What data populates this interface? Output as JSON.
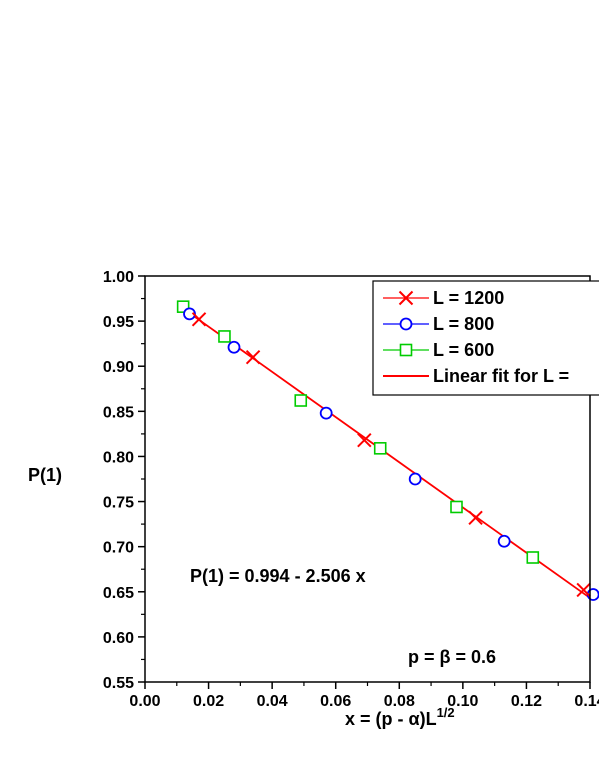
{
  "chart_data": {
    "type": "scatter",
    "xlabel": "x = (p - α)L",
    "xlabel_sup": "1/2",
    "ylabel": "P(1)",
    "xlim": [
      0.0,
      0.14
    ],
    "ylim": [
      0.55,
      1.0
    ],
    "x_ticks": [
      "0.00",
      "0.02",
      "0.04",
      "0.06",
      "0.08",
      "0.10",
      "0.12",
      "0.14"
    ],
    "y_ticks": [
      "0.55",
      "0.60",
      "0.65",
      "0.70",
      "0.75",
      "0.80",
      "0.85",
      "0.90",
      "0.95",
      "1.00"
    ],
    "legend_position": "top-right",
    "series": [
      {
        "name": "L = 1200",
        "marker": "x",
        "color": "#ff0000",
        "x": [
          0.017,
          0.034,
          0.069,
          0.104,
          0.138
        ],
        "y": [
          0.952,
          0.91,
          0.818,
          0.732,
          0.652
        ]
      },
      {
        "name": "L = 800",
        "marker": "circle",
        "color": "#0000ff",
        "x": [
          0.014,
          0.028,
          0.057,
          0.085,
          0.113,
          0.141
        ],
        "y": [
          0.958,
          0.921,
          0.848,
          0.775,
          0.706,
          0.647
        ]
      },
      {
        "name": "L = 600",
        "marker": "square",
        "color": "#00cc00",
        "x": [
          0.012,
          0.025,
          0.049,
          0.074,
          0.098,
          0.122
        ],
        "y": [
          0.966,
          0.933,
          0.862,
          0.809,
          0.744,
          0.688
        ]
      }
    ],
    "fit": {
      "name": "Linear fit for L =",
      "color": "#ff0000",
      "intercept": 0.994,
      "slope": -2.506,
      "x_range": [
        0.013,
        0.14
      ]
    },
    "annotations": {
      "equation": "P(1) = 0.994 - 2.506 x",
      "params": "p = β = 0.6"
    }
  }
}
